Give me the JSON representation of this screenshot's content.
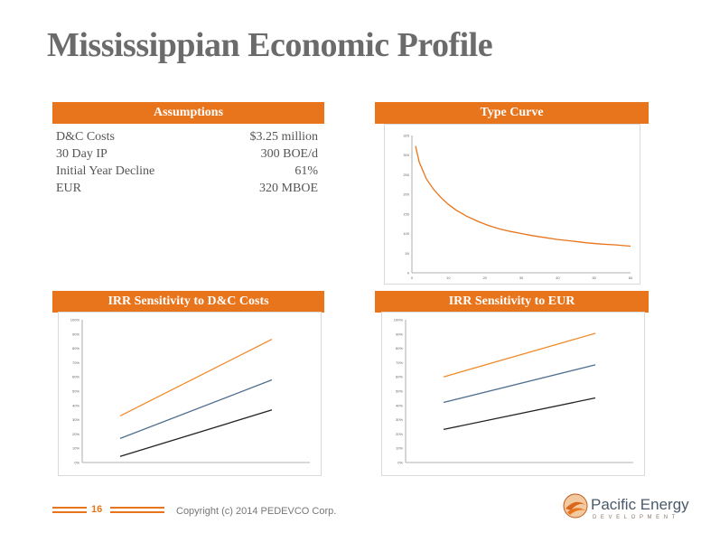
{
  "title": "Mississippian Economic Profile",
  "assumptions": {
    "header": "Assumptions",
    "rows": [
      {
        "label": "D&C Costs",
        "value": "$3.25 million"
      },
      {
        "label": "30 Day IP",
        "value": "300 BOE/d"
      },
      {
        "label": "Initial Year Decline",
        "value": "61%"
      },
      {
        "label": "EUR",
        "value": "320 MBOE"
      }
    ]
  },
  "type_curve": {
    "header": "Type Curve"
  },
  "irr_dc": {
    "header": "IRR Sensitivity to D&C Costs"
  },
  "irr_eur": {
    "header": "IRR Sensitivity to EUR"
  },
  "footer": {
    "page_number": "16",
    "copyright": "Copyright (c) 2014 PEDEVCO Corp.",
    "logo_name": "Pacific Energy",
    "logo_sub": "DEVELOPMENT"
  },
  "colors": {
    "accent": "#e8741c",
    "title": "#6b6b6b",
    "series_black": "#222222",
    "series_blue": "#4f6f8f",
    "series_orange": "#f08a2a"
  },
  "chart_data": [
    {
      "type": "line",
      "name": "type-curve",
      "x": [
        1,
        2,
        4,
        6,
        8,
        10,
        12,
        15,
        18,
        21,
        24,
        27,
        30,
        33,
        36,
        40,
        44,
        48,
        52,
        56,
        60
      ],
      "series": [
        {
          "values": [
            300,
            262,
            222,
            197,
            178,
            162,
            149,
            134,
            122,
            112,
            104,
            98,
            93,
            88,
            84,
            79,
            75,
            71,
            68,
            66,
            63
          ]
        }
      ],
      "xlim": [
        0,
        60
      ],
      "ylim": [
        0,
        325
      ],
      "x_ticks": [
        "0",
        "10",
        "20",
        "30",
        "40",
        "50",
        "60"
      ],
      "y_ticks": [
        "0",
        "50",
        "100",
        "150",
        "200",
        "250",
        "300",
        "325"
      ]
    },
    {
      "type": "line",
      "name": "irr-dc",
      "x": [
        40,
        100
      ],
      "series": [
        {
          "values": [
            4,
            35
          ]
        },
        {
          "values": [
            16,
            55
          ]
        },
        {
          "values": [
            31,
            82
          ]
        }
      ],
      "xlim": [
        25,
        115
      ],
      "ylim": [
        0,
        95
      ],
      "y_ticks": [
        "0%",
        "10%",
        "20%",
        "30%",
        "40%",
        "50%",
        "60%",
        "70%",
        "80%",
        "90%",
        "100%"
      ]
    },
    {
      "type": "line",
      "name": "irr-eur",
      "x": [
        40,
        100
      ],
      "series": [
        {
          "values": [
            22,
            43
          ]
        },
        {
          "values": [
            40,
            65
          ]
        },
        {
          "values": [
            57,
            86
          ]
        }
      ],
      "xlim": [
        25,
        115
      ],
      "ylim": [
        0,
        95
      ],
      "y_ticks": [
        "0%",
        "10%",
        "20%",
        "30%",
        "40%",
        "50%",
        "60%",
        "70%",
        "80%",
        "90%",
        "100%"
      ]
    }
  ]
}
